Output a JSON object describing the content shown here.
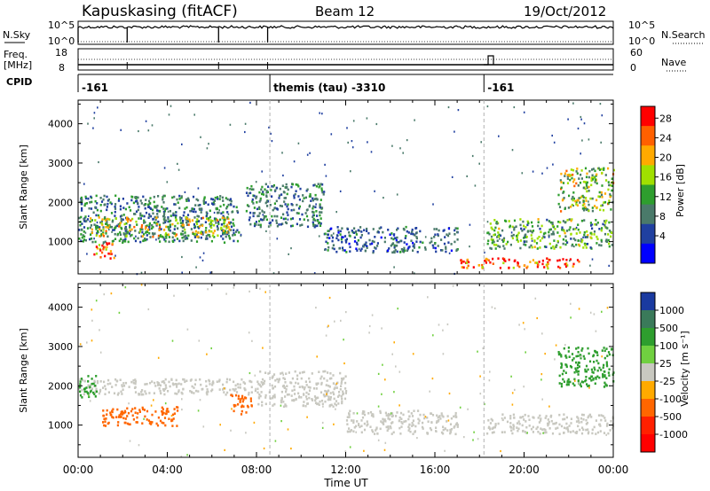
{
  "header": {
    "station": "Kapuskasing (fitACF)",
    "beam": "Beam 12",
    "date": "19/Oct/2012"
  },
  "noise_panel": {
    "left_label": "N.Sky",
    "right_label": "N.Search",
    "left_ticks": [
      "10^5",
      "10^0"
    ],
    "right_ticks": [
      "10^5",
      "10^0"
    ]
  },
  "freq_panel": {
    "left_label_1": "Freq.",
    "left_label_2": "[MHz]",
    "right_label": "Nave",
    "left_ticks": [
      "18",
      "8"
    ],
    "right_ticks": [
      "60",
      "0"
    ]
  },
  "cpid_panel": {
    "label": "CPID",
    "segments": [
      {
        "start_h": 0.0,
        "label": "-161"
      },
      {
        "start_h": 8.6,
        "label": "themis (tau) -3310"
      },
      {
        "start_h": 18.2,
        "label": "-161"
      }
    ]
  },
  "power_colorbar": {
    "label": "Power [dB]",
    "ticks": [
      "28",
      "24",
      "20",
      "16",
      "12",
      "8",
      "4"
    ],
    "colors": [
      "#ff0000",
      "#ff6000",
      "#ffaa00",
      "#a0e000",
      "#2e9e2e",
      "#4a7a6a",
      "#2040a0",
      "#0000ff"
    ]
  },
  "velocity_colorbar": {
    "label": "Velocity [m s⁻¹]",
    "ticks": [
      "1000",
      "500",
      "100",
      "25",
      "-25",
      "-100",
      "-500",
      "-1000"
    ],
    "colors": [
      "#1a3aa0",
      "#3a7a5a",
      "#2e9e2e",
      "#70d040",
      "#c8c8c0",
      "#ffaa00",
      "#ff6600",
      "#ff2000",
      "#ff0000"
    ]
  },
  "x_axis": {
    "label": "Time UT",
    "ticks": [
      "00:00",
      "04:00",
      "08:00",
      "12:00",
      "16:00",
      "20:00",
      "00:00"
    ]
  },
  "chart_data": [
    {
      "type": "heatmap",
      "name": "power",
      "ylabel": "Slant Range [km]",
      "xlabel": "Time UT",
      "xlim": [
        0,
        24
      ],
      "ylim": [
        180,
        4600
      ],
      "yticks": [
        1000,
        2000,
        3000,
        4000
      ],
      "cblim": [
        0,
        30
      ],
      "echo_bands": [
        {
          "t0": 0,
          "t1": 7.2,
          "r0": 1000,
          "r1": 2200,
          "value": 8
        },
        {
          "t0": 0.5,
          "t1": 6.8,
          "r0": 1150,
          "r1": 1650,
          "value": 16
        },
        {
          "t0": 0.6,
          "t1": 1.6,
          "r0": 560,
          "r1": 1000,
          "value": 24
        },
        {
          "t0": 7.5,
          "t1": 11.0,
          "r0": 1400,
          "r1": 2500,
          "value": 8
        },
        {
          "t0": 11.0,
          "t1": 17.0,
          "r0": 750,
          "r1": 1400,
          "value": 6
        },
        {
          "t0": 17.0,
          "t1": 22.5,
          "r0": 350,
          "r1": 600,
          "value": 27
        },
        {
          "t0": 18.3,
          "t1": 24,
          "r0": 850,
          "r1": 1600,
          "value": 12
        },
        {
          "t0": 21.5,
          "t1": 24,
          "r0": 1800,
          "r1": 2900,
          "value": 15
        }
      ]
    },
    {
      "type": "heatmap",
      "name": "velocity",
      "ylabel": "Slant Range [km]",
      "xlabel": "Time UT",
      "xlim": [
        0,
        24
      ],
      "ylim": [
        180,
        4600
      ],
      "yticks": [
        1000,
        2000,
        3000,
        4000
      ],
      "cblim": [
        -1000,
        1000
      ],
      "echo_bands": [
        {
          "t0": 0,
          "t1": 8.0,
          "r0": 1800,
          "r1": 2200,
          "value": 0
        },
        {
          "t0": 0,
          "t1": 0.8,
          "r0": 1700,
          "r1": 2300,
          "value": 150
        },
        {
          "t0": 1.0,
          "t1": 4.5,
          "r0": 1000,
          "r1": 1500,
          "value": -200
        },
        {
          "t0": 6.8,
          "t1": 7.8,
          "r0": 1300,
          "r1": 1800,
          "value": -300
        },
        {
          "t0": 8.0,
          "t1": 12.0,
          "r0": 1500,
          "r1": 2400,
          "value": 0
        },
        {
          "t0": 12.0,
          "t1": 17.0,
          "r0": 800,
          "r1": 1400,
          "value": 0
        },
        {
          "t0": 18.3,
          "t1": 24,
          "r0": 800,
          "r1": 1300,
          "value": 0
        },
        {
          "t0": 21.5,
          "t1": 24,
          "r0": 2000,
          "r1": 3000,
          "value": 300
        }
      ]
    }
  ]
}
